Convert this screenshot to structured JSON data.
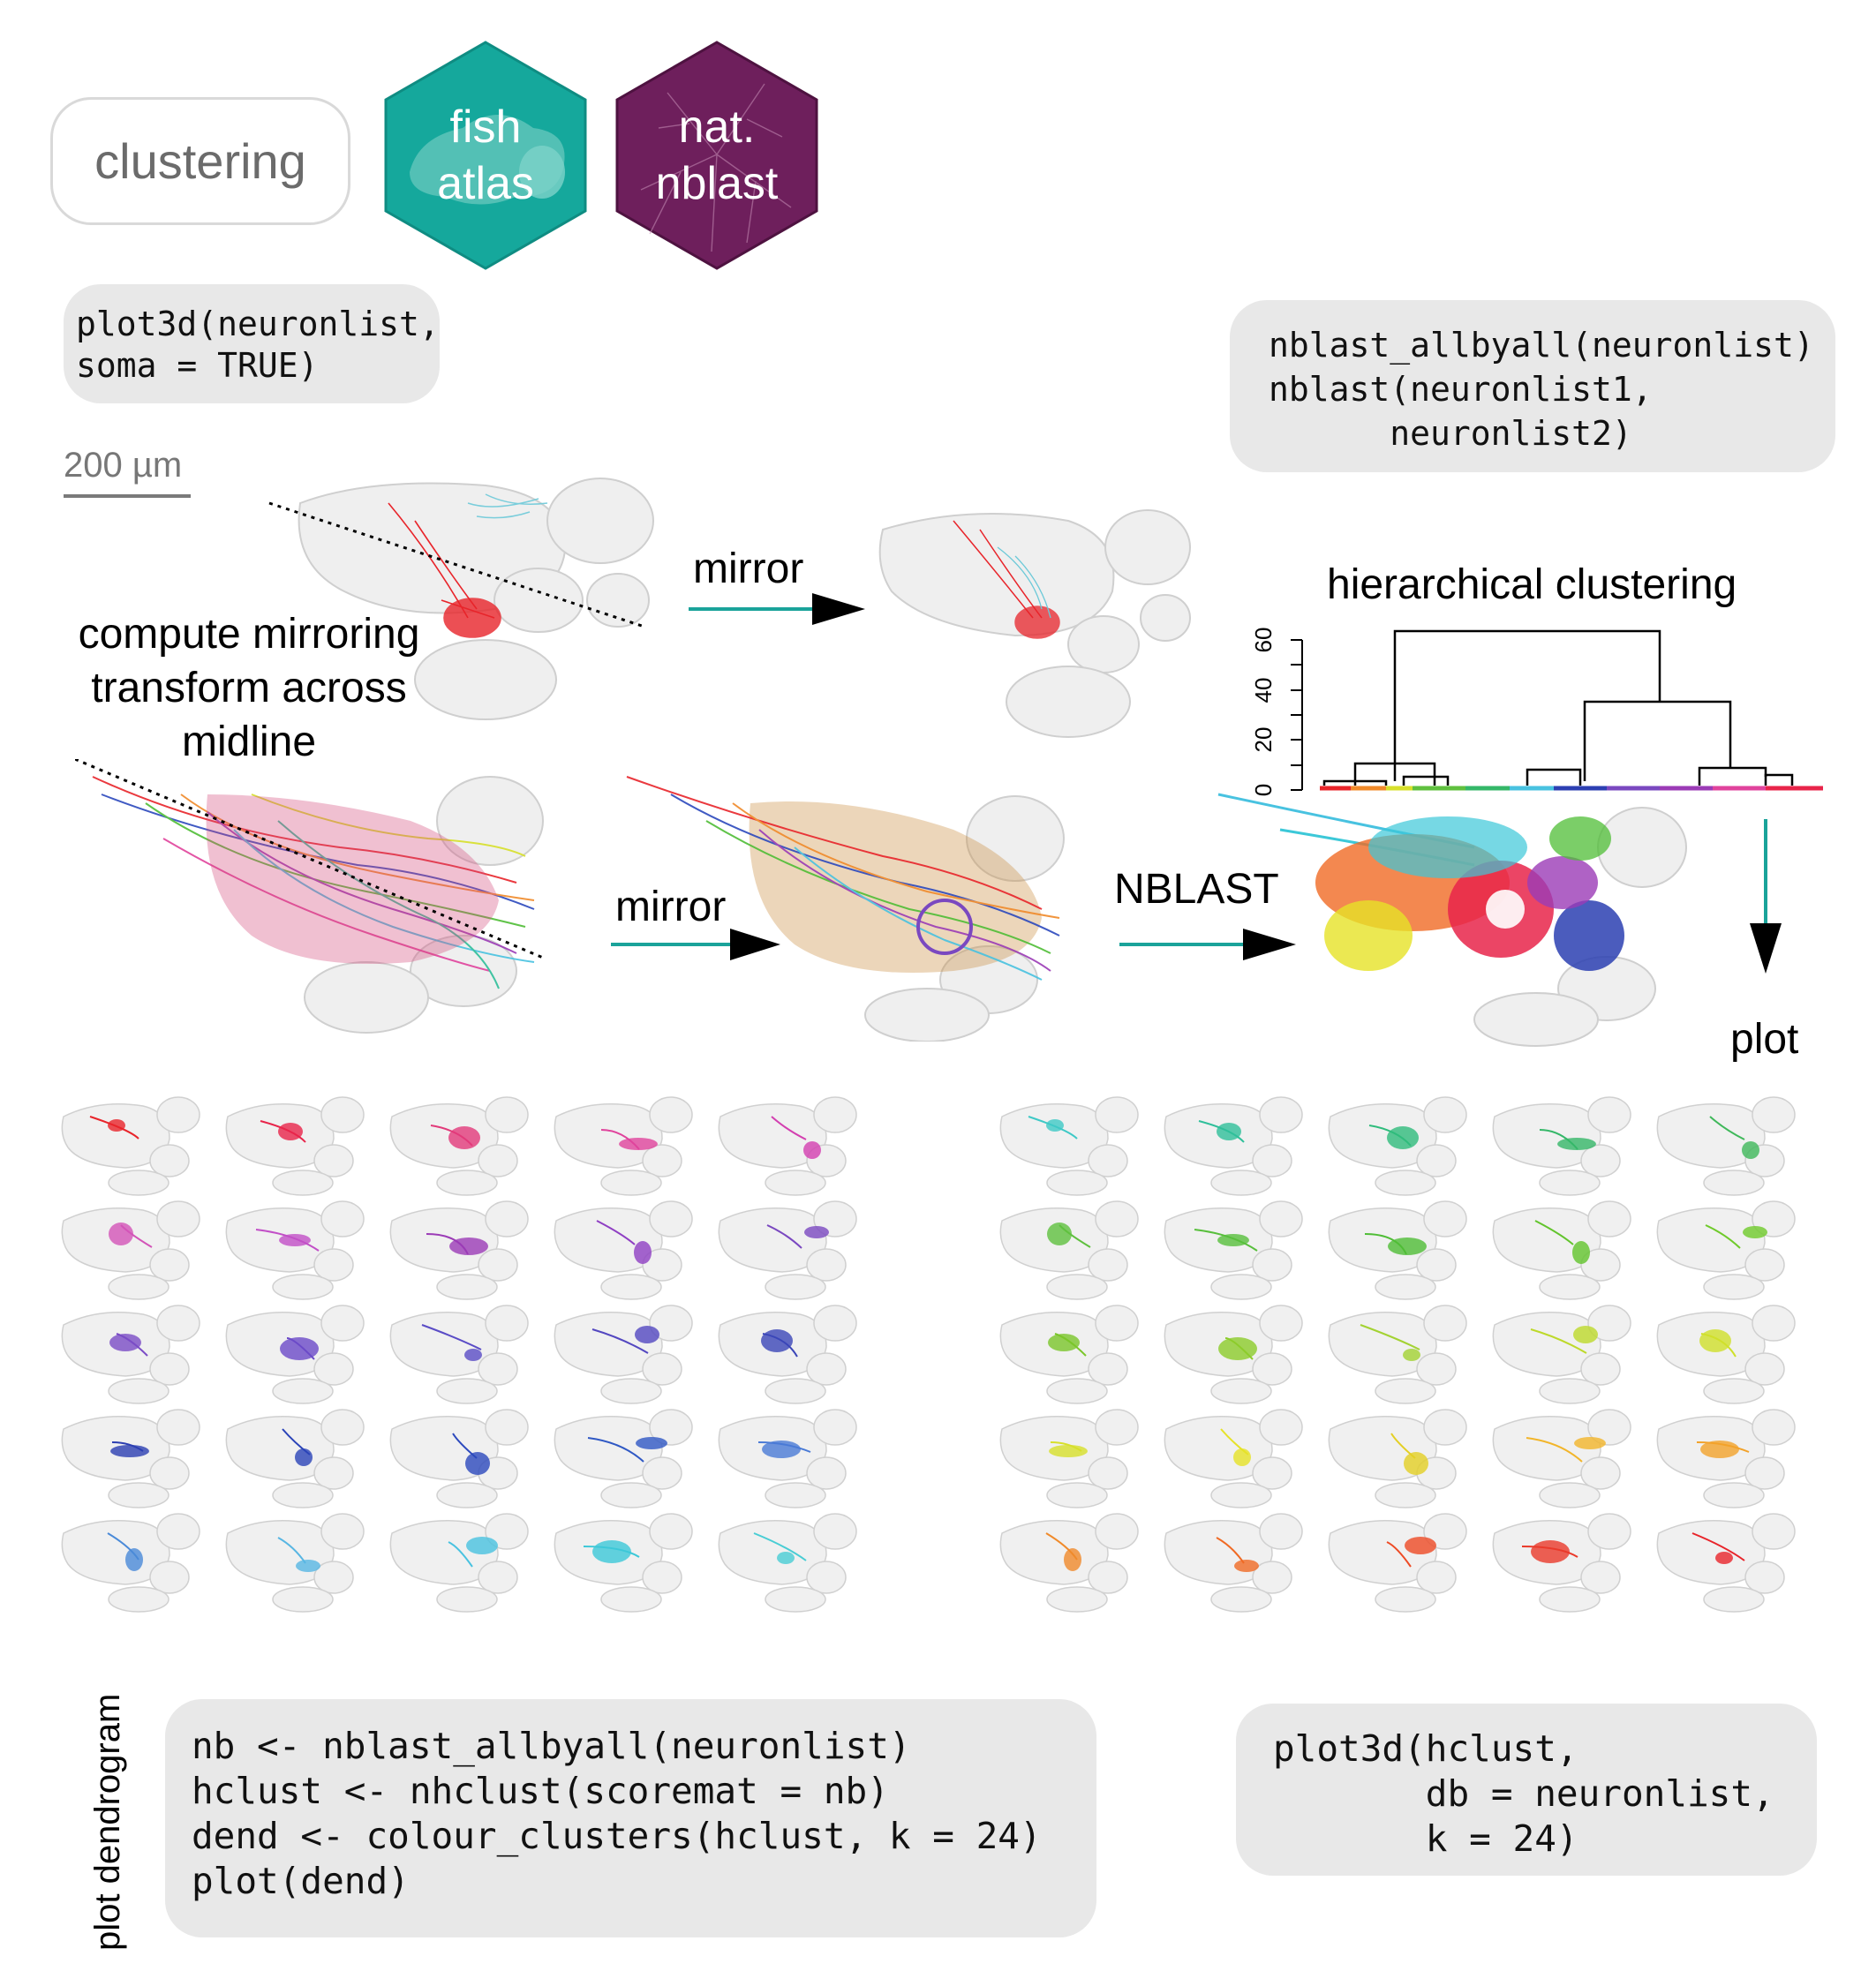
{
  "header": {
    "pill_label": "clustering",
    "hex_fish": {
      "line1": "fish",
      "line2": "atlas",
      "color": "#15a89c"
    },
    "hex_nat": {
      "line1": "nat.",
      "line2": "nblast",
      "color": "#6e1f5c"
    }
  },
  "code_plot3d_soma": [
    "plot3d(neuronlist,",
    "soma = TRUE)"
  ],
  "code_nblast": [
    "nblast_allbyall(neuronlist)",
    "nblast(neuronlist1,",
    "      neuronlist2)"
  ],
  "scale_bar": {
    "label": "200 µm"
  },
  "labels": {
    "compute_mirroring": [
      "compute mirroring",
      "transform across",
      "midline"
    ],
    "mirror_top": "mirror",
    "mirror_bottom": "mirror",
    "nblast_arrow": "NBLAST",
    "hierarchical_clustering": "hierarchical clustering",
    "plot": "plot",
    "plot_dendrogram": "plot dendrogram"
  },
  "dendrogram": {
    "y_ticks": [
      "0",
      "20",
      "40",
      "60"
    ],
    "arrow_color": "#1aa39a"
  },
  "cluster_grid": {
    "left_colors": [
      "#e8242a",
      "#e8244a",
      "#e23a7a",
      "#e0439c",
      "#d33fb0",
      "#d354b8",
      "#c24fc7",
      "#9b3bb6",
      "#8f3fc3",
      "#7a48c0",
      "#7b4cc6",
      "#6b4ac8",
      "#5a4cc6",
      "#5347c0",
      "#3b46b8",
      "#2c3fb2",
      "#2a43b8",
      "#2c49bd",
      "#2f58c4",
      "#4a7ad6",
      "#4a8ad8",
      "#58b6e3",
      "#48c2e0",
      "#3cc8d8",
      "#48cdd4"
    ],
    "right_colors": [
      "#3ec9c6",
      "#2fbf9a",
      "#2fbc7c",
      "#34b768",
      "#3fb85a",
      "#5fc03e",
      "#58bf3c",
      "#4fbd36",
      "#62c42c",
      "#6fca2a",
      "#7bc62a",
      "#8ccc2a",
      "#a3d232",
      "#bdd92a",
      "#cfe02a",
      "#d7e02a",
      "#e6e227",
      "#e4cf24",
      "#f2b52a",
      "#f2a22a",
      "#f08a2a",
      "#f06a24",
      "#ee4a24",
      "#ea3a2a",
      "#e8242a"
    ]
  },
  "code_nhclust": [
    "nb <- nblast_allbyall(neuronlist)",
    "hclust <- nhclust(scoremat = nb)",
    "dend <- colour_clusters(hclust, k = 24)",
    "plot(dend)"
  ],
  "code_plot3d_hclust": [
    "plot3d(hclust,",
    "       db = neuronlist,",
    "       k = 24)"
  ]
}
